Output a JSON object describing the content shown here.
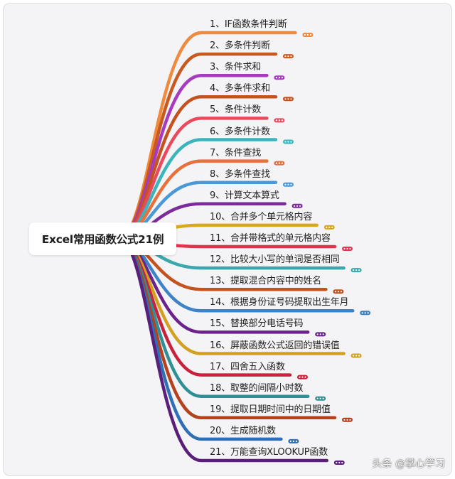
{
  "root_label": "Excel常用函数公式21例",
  "watermark": "头条 @掌心学习",
  "branches": [
    {
      "label": "1、IF函数条件判断",
      "color": "#f08a3f"
    },
    {
      "label": "2、多条件判断",
      "color": "#c75a21"
    },
    {
      "label": "3、条件求和",
      "color": "#a63bc0"
    },
    {
      "label": "4、多条件求和",
      "color": "#c4521f"
    },
    {
      "label": "5、条件计数",
      "color": "#e94a5c"
    },
    {
      "label": "6、多条件计数",
      "color": "#3bb4bb"
    },
    {
      "label": "7、条件查找",
      "color": "#e8703a"
    },
    {
      "label": "8、多条件查找",
      "color": "#4b98d8"
    },
    {
      "label": "9、计算文本算式",
      "color": "#7b2b9a"
    },
    {
      "label": "10、合并多个单元格内容",
      "color": "#d8a71c"
    },
    {
      "label": "11、合并带格式的单元格内容",
      "color": "#e0344e"
    },
    {
      "label": "12、比较大小写的单词是否相同",
      "color": "#3aa7ad"
    },
    {
      "label": "13、提取混合内容中的姓名",
      "color": "#c4521f"
    },
    {
      "label": "14、根据身份证号码提取出生年月",
      "color": "#3e83c8"
    },
    {
      "label": "15、替换部分电话号码",
      "color": "#6b238a"
    },
    {
      "label": "16、屏蔽函数公式返回的错误值",
      "color": "#d3a020"
    },
    {
      "label": "17、四舍五入函数",
      "color": "#c8223c"
    },
    {
      "label": "18、取整的间隔小时数",
      "color": "#2f8f96"
    },
    {
      "label": "19、提取日期时间中的日期值",
      "color": "#b5411e"
    },
    {
      "label": "20、生成随机数",
      "color": "#2f6fb5"
    },
    {
      "label": "21、万能查询XLOOKUP函数",
      "color": "#5a1f7a"
    }
  ]
}
